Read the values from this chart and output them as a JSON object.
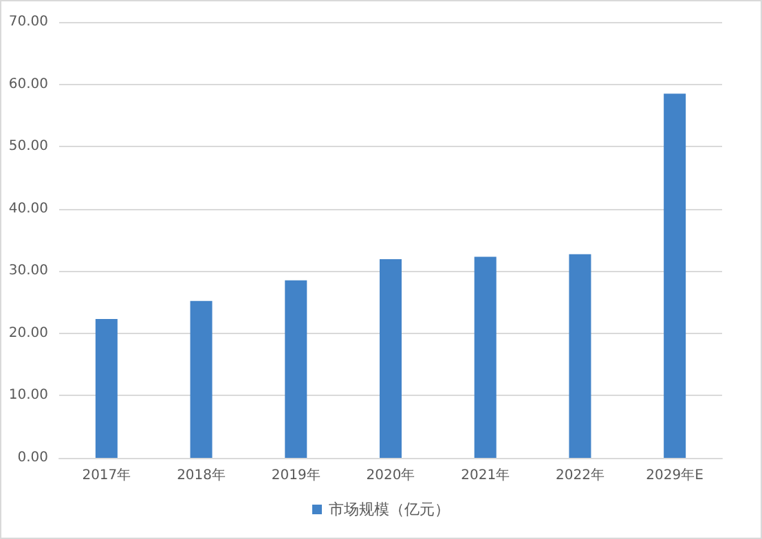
{
  "chart_data": {
    "type": "bar",
    "categories": [
      "2017年",
      "2018年",
      "2019年",
      "2020年",
      "2021年",
      "2022年",
      "2029年E"
    ],
    "series": [
      {
        "name": "市场规模（亿元）",
        "color": "#4283c8",
        "values": [
          22.3,
          25.2,
          28.5,
          31.9,
          32.3,
          32.7,
          58.5
        ]
      }
    ],
    "ylim": [
      0,
      70
    ],
    "yticks": [
      {
        "value": 0,
        "label": "0.00"
      },
      {
        "value": 10,
        "label": "10.00"
      },
      {
        "value": 20,
        "label": "20.00"
      },
      {
        "value": 30,
        "label": "30.00"
      },
      {
        "value": 40,
        "label": "40.00"
      },
      {
        "value": 50,
        "label": "50.00"
      },
      {
        "value": 60,
        "label": "60.00"
      },
      {
        "value": 70,
        "label": "70.00"
      }
    ],
    "grid": "y",
    "legend": "bottom"
  }
}
